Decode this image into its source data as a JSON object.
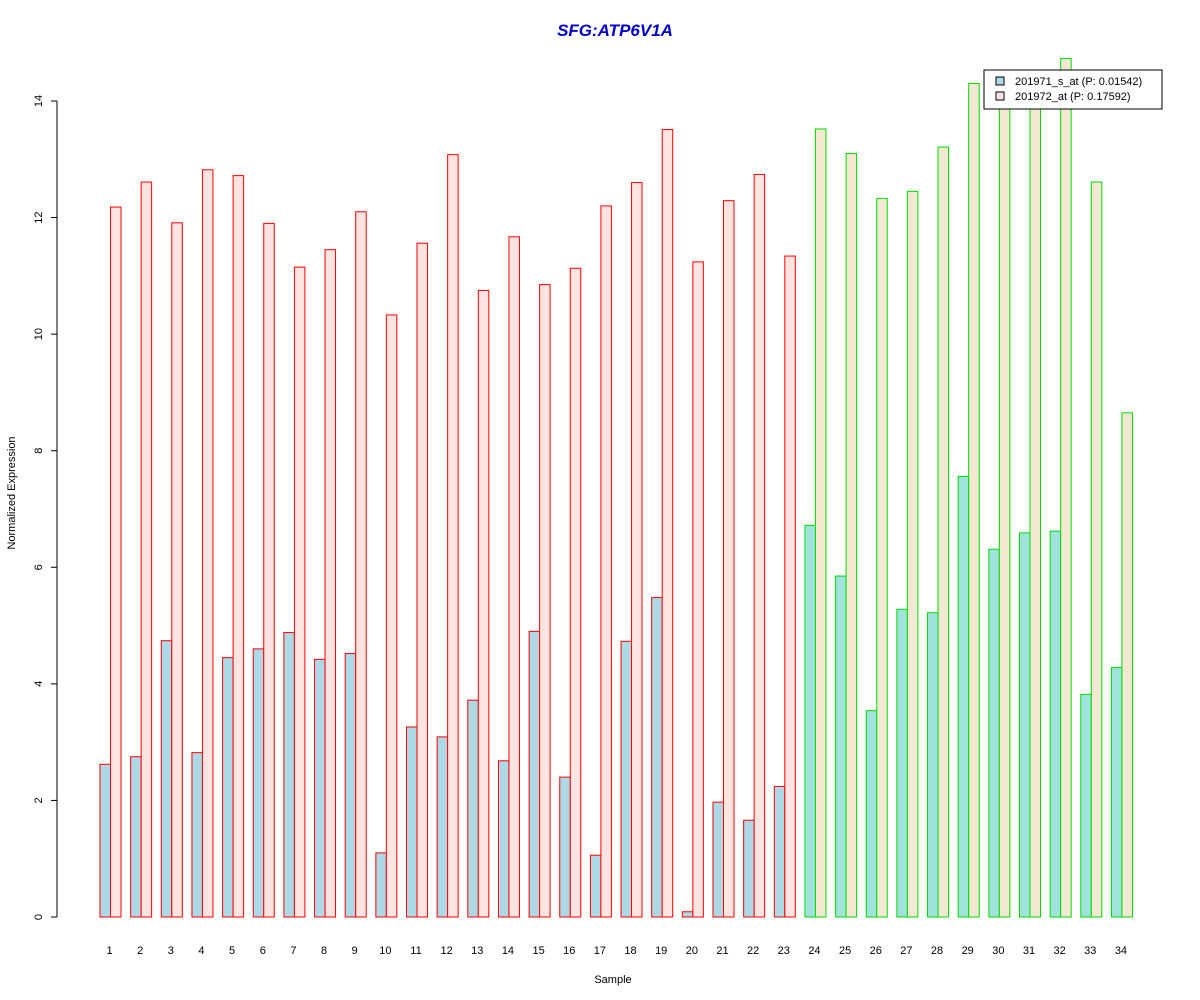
{
  "chart_data": {
    "type": "bar",
    "title": "SFG:ATP6V1A",
    "xlabel": "Sample",
    "ylabel": "Normalized Expression",
    "ylim": [
      0,
      14
    ],
    "yticks": [
      0,
      2,
      4,
      6,
      8,
      10,
      12,
      14
    ],
    "grid": false,
    "legend_position": "top-right",
    "categories": [
      "1",
      "2",
      "3",
      "4",
      "5",
      "6",
      "7",
      "8",
      "9",
      "10",
      "11",
      "12",
      "13",
      "14",
      "15",
      "16",
      "17",
      "18",
      "19",
      "20",
      "21",
      "22",
      "23",
      "24",
      "25",
      "26",
      "27",
      "28",
      "29",
      "30",
      "31",
      "32",
      "33",
      "34"
    ],
    "group_a_count": 23,
    "series": [
      {
        "name": "201971_s_at (P: 0.01542)",
        "values": [
          2.62,
          2.75,
          4.74,
          2.82,
          4.45,
          4.6,
          4.88,
          4.42,
          4.52,
          1.1,
          3.26,
          3.09,
          3.72,
          2.68,
          4.9,
          2.4,
          1.06,
          4.73,
          5.48,
          0.09,
          1.97,
          1.66,
          2.24,
          6.72,
          5.85,
          3.54,
          5.28,
          5.22,
          7.56,
          6.31,
          6.59,
          6.62,
          3.82,
          4.28
        ]
      },
      {
        "name": "201972_at (P: 0.17592)",
        "values": [
          12.18,
          12.61,
          11.91,
          12.82,
          12.72,
          11.9,
          11.15,
          11.45,
          12.1,
          10.33,
          11.56,
          13.08,
          10.75,
          11.67,
          10.85,
          11.13,
          12.2,
          12.6,
          13.51,
          11.24,
          12.29,
          12.74,
          11.34,
          13.52,
          13.1,
          12.33,
          12.45,
          13.21,
          14.3,
          14.2,
          14.2,
          14.73,
          12.61,
          8.65
        ]
      }
    ],
    "colors": {
      "title": "#0000cc",
      "series1_fill": "#add8e6",
      "series2_fill_group_a": "#ffe4e1",
      "series2_fill_group_b": "#f3e8d2",
      "series1_fill_group_b": "#a0e2dc",
      "border_group_a": "#ff0000",
      "border_group_b": "#00dd00",
      "legend_fill_1": "#add8e6",
      "legend_fill_2": "#ffe4e1"
    }
  }
}
